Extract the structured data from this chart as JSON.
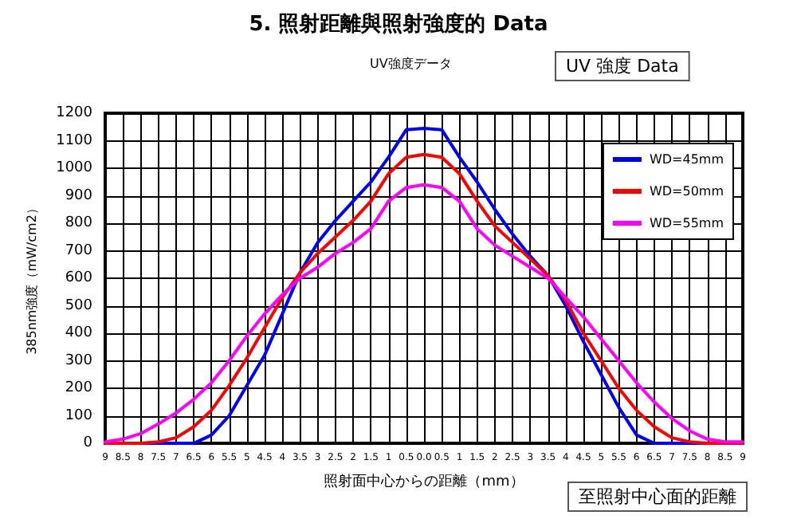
{
  "chart_data": {
    "type": "line",
    "title": "5. 照射距離與照射強度的 Data",
    "xlabel": "照射面中心からの距離（mm）",
    "ylabel": "385nm強度（mW/cm2）",
    "annotations": [
      "UV強度データ",
      "UV 強度 Data",
      "至照射中心面的距離"
    ],
    "categories": [
      "9",
      "8.5",
      "8",
      "7.5",
      "7",
      "6.5",
      "6",
      "5.5",
      "5",
      "4.5",
      "4",
      "3.5",
      "3",
      "2.5",
      "2",
      "1.5",
      "1",
      "0.5",
      "0.0",
      "0.5",
      "1",
      "1.5",
      "2",
      "2.5",
      "3",
      "3.5",
      "4",
      "4.5",
      "5",
      "5.5",
      "6",
      "6.5",
      "7",
      "7.5",
      "8",
      "8.5",
      "9"
    ],
    "series": [
      {
        "name": "WD=45mm",
        "color": "#0000ff",
        "values": [
          0,
          0,
          0,
          0,
          0,
          0,
          30,
          100,
          210,
          320,
          470,
          620,
          730,
          810,
          880,
          950,
          1040,
          1140,
          1145,
          1140,
          1040,
          950,
          850,
          760,
          680,
          610,
          500,
          370,
          250,
          130,
          30,
          0,
          0,
          0,
          0,
          0,
          0
        ]
      },
      {
        "name": "WD=50mm",
        "color": "#ff0000",
        "values": [
          0,
          0,
          0,
          5,
          20,
          60,
          120,
          210,
          310,
          420,
          530,
          620,
          690,
          750,
          810,
          880,
          980,
          1040,
          1050,
          1040,
          980,
          880,
          790,
          730,
          670,
          610,
          520,
          400,
          300,
          200,
          120,
          60,
          20,
          5,
          0,
          0,
          0
        ]
      },
      {
        "name": "WD=55mm",
        "color": "#ff00ff",
        "values": [
          5,
          15,
          35,
          70,
          110,
          160,
          220,
          300,
          390,
          470,
          540,
          600,
          640,
          690,
          730,
          780,
          880,
          930,
          940,
          930,
          880,
          780,
          720,
          680,
          640,
          600,
          530,
          460,
          380,
          300,
          220,
          150,
          90,
          45,
          15,
          5,
          5
        ]
      }
    ],
    "ylim": [
      0,
      1200
    ],
    "yticks": [
      0,
      100,
      200,
      300,
      400,
      500,
      600,
      700,
      800,
      900,
      1000,
      1100,
      1200
    ],
    "grid": true,
    "legend": "top right",
    "marker": "none",
    "line_style": "solid"
  }
}
